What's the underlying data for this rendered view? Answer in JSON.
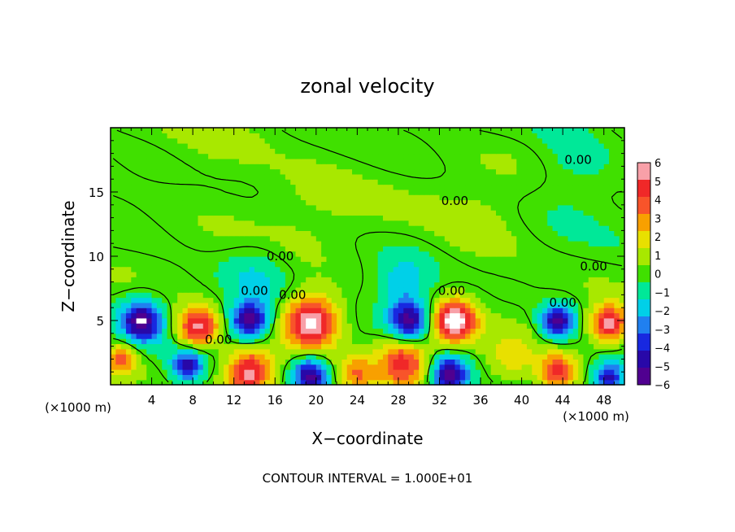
{
  "chart_data": {
    "type": "heatmap",
    "title": "zonal velocity",
    "xlabel": "X−coordinate",
    "ylabel": "Z−coordinate",
    "x_unit_label_left": "(×1000 m)",
    "x_unit_label_right": "(×1000 m)",
    "footer": "CONTOUR INTERVAL = 1.000E+01",
    "xlim": [
      0,
      50
    ],
    "ylim": [
      0,
      20
    ],
    "x_ticks": [
      4,
      8,
      12,
      16,
      20,
      24,
      28,
      32,
      36,
      40,
      44,
      48
    ],
    "x_tick_labels": [
      "4",
      "8",
      "12",
      "16",
      "20",
      "24",
      "28",
      "32",
      "36",
      "40",
      "44",
      "48"
    ],
    "y_ticks": [
      5,
      10,
      15
    ],
    "y_tick_labels": [
      "5",
      "10",
      "15"
    ],
    "colorbar": {
      "levels": [
        6,
        5,
        4,
        3,
        2,
        1,
        0,
        -1,
        -2,
        -3,
        -4,
        -5,
        -6
      ],
      "labels": [
        "6",
        "5",
        "4",
        "3",
        "2",
        "1",
        "0",
        "−1",
        "−2",
        "−3",
        "−4",
        "−5",
        "−6"
      ],
      "colors": [
        "#f8a0a8",
        "#f02828",
        "#f8542a",
        "#f8a000",
        "#e8e000",
        "#a8e800",
        "#40e000",
        "#00e898",
        "#00d0e8",
        "#2080f0",
        "#1828e0",
        "#2808a8",
        "#500090"
      ]
    },
    "contour_label": "0.00",
    "contour_labels": [
      {
        "text": "0.00",
        "x": 45.5,
        "z": 17.5
      },
      {
        "text": "0.00",
        "x": 33.5,
        "z": 14.3
      },
      {
        "text": "0.00",
        "x": 16.5,
        "z": 10.0
      },
      {
        "text": "0.00",
        "x": 47.0,
        "z": 9.2
      },
      {
        "text": "0.00",
        "x": 14.0,
        "z": 7.3
      },
      {
        "text": "0.00",
        "x": 17.7,
        "z": 7.0
      },
      {
        "text": "0.00",
        "x": 33.2,
        "z": 7.3
      },
      {
        "text": "0.00",
        "x": 44.0,
        "z": 6.4
      },
      {
        "text": "0.00",
        "x": 10.5,
        "z": 3.5
      }
    ]
  }
}
